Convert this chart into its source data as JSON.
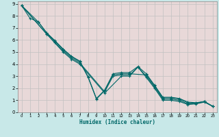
{
  "xlabel": "Humidex (Indice chaleur)",
  "ylabel": "",
  "figure_bg": "#c8e8e8",
  "plot_bg": "#e8d8d8",
  "grid_color": "#c0c0c0",
  "line_color": "#006868",
  "xlim": [
    -0.5,
    23.5
  ],
  "ylim": [
    0,
    9.2
  ],
  "xticks": [
    0,
    1,
    2,
    3,
    4,
    5,
    6,
    7,
    8,
    9,
    10,
    11,
    12,
    13,
    14,
    15,
    16,
    17,
    18,
    19,
    20,
    21,
    22,
    23
  ],
  "yticks": [
    0,
    1,
    2,
    3,
    4,
    5,
    6,
    7,
    8,
    9
  ],
  "series": [
    {
      "x": [
        0,
        1,
        2,
        3,
        4,
        5,
        6,
        7,
        8,
        9,
        10,
        11,
        12,
        13,
        14,
        15,
        16,
        17,
        18,
        19,
        20,
        21,
        22,
        23
      ],
      "y": [
        8.85,
        7.8,
        7.5,
        6.6,
        5.95,
        5.25,
        4.65,
        4.25,
        2.95,
        1.15,
        1.85,
        3.2,
        3.3,
        3.3,
        3.8,
        3.2,
        2.25,
        1.25,
        1.25,
        1.15,
        0.85,
        0.8,
        0.9,
        0.5
      ]
    },
    {
      "x": [
        0,
        2,
        3,
        4,
        5,
        6,
        7,
        8,
        9,
        10,
        11,
        12,
        13,
        15,
        16,
        17,
        18,
        19,
        20,
        21,
        22,
        23
      ],
      "y": [
        8.85,
        7.5,
        6.6,
        5.9,
        5.2,
        4.6,
        4.2,
        2.9,
        1.1,
        1.8,
        3.1,
        3.2,
        3.2,
        3.1,
        2.2,
        1.2,
        1.2,
        1.1,
        0.8,
        0.75,
        0.9,
        0.5
      ]
    },
    {
      "x": [
        0,
        3,
        4,
        5,
        6,
        7,
        10,
        11,
        12,
        13,
        14,
        15,
        16,
        17,
        18,
        19,
        20,
        21,
        22,
        23
      ],
      "y": [
        8.85,
        6.5,
        5.8,
        5.1,
        4.5,
        4.1,
        1.7,
        3.0,
        3.1,
        3.1,
        3.75,
        3.0,
        2.1,
        1.1,
        1.1,
        1.0,
        0.7,
        0.75,
        0.9,
        0.5
      ]
    },
    {
      "x": [
        0,
        3,
        5,
        6,
        7,
        10,
        12,
        13,
        14,
        15,
        16,
        17,
        18,
        19,
        20,
        21,
        22,
        23
      ],
      "y": [
        8.85,
        6.5,
        5.0,
        4.4,
        4.0,
        1.6,
        3.0,
        3.0,
        3.75,
        2.9,
        2.0,
        1.0,
        1.0,
        0.9,
        0.65,
        0.7,
        0.85,
        0.5
      ]
    }
  ]
}
